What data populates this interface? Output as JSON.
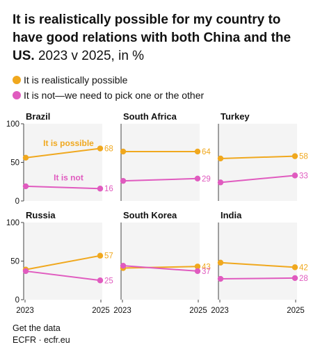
{
  "header": {
    "title_bold": "It is realistically possible for my country to have good relations with both China and the US.",
    "title_rest": " 2023 v 2025, in %"
  },
  "legend": {
    "items": [
      {
        "label": "It is realistically possible",
        "color": "#F0A81E"
      },
      {
        "label": "It is not—we need to pick one or the other",
        "color": "#E05BBF"
      }
    ]
  },
  "footer": {
    "link": "Get the data",
    "source": "ECFR · ecfr.eu"
  },
  "colors": {
    "possible": "#F0A81E",
    "not": "#E05BBF",
    "panel_bg": "#F4F4F4"
  },
  "chart_data": {
    "type": "line",
    "x": [
      "2023",
      "2025"
    ],
    "ylim": [
      0,
      100
    ],
    "yticks": [
      "0",
      "50",
      "100"
    ],
    "panels": [
      {
        "country": "Brazil",
        "series": [
          {
            "name": "It is realistically possible",
            "values": [
              56,
              68
            ],
            "label": "68",
            "inline_label": "It is possible"
          },
          {
            "name": "It is not—we need to pick one or the other",
            "values": [
              19,
              16
            ],
            "label": "16",
            "inline_label": "It is not"
          }
        ]
      },
      {
        "country": "South Africa",
        "series": [
          {
            "name": "It is realistically possible",
            "values": [
              64,
              64
            ],
            "label": "64"
          },
          {
            "name": "It is not—we need to pick one or the other",
            "values": [
              26,
              29
            ],
            "label": "29"
          }
        ]
      },
      {
        "country": "Turkey",
        "series": [
          {
            "name": "It is realistically possible",
            "values": [
              55,
              58
            ],
            "label": "58"
          },
          {
            "name": "It is not—we need to pick one or the other",
            "values": [
              24,
              33
            ],
            "label": "33"
          }
        ]
      },
      {
        "country": "Russia",
        "series": [
          {
            "name": "It is realistically possible",
            "values": [
              39,
              57
            ],
            "label": "57"
          },
          {
            "name": "It is not—we need to pick one or the other",
            "values": [
              37,
              25
            ],
            "label": "25"
          }
        ]
      },
      {
        "country": "South Korea",
        "series": [
          {
            "name": "It is realistically possible",
            "values": [
              41,
              43
            ],
            "label": "43"
          },
          {
            "name": "It is not—we need to pick one or the other",
            "values": [
              44,
              37
            ],
            "label": "37"
          }
        ]
      },
      {
        "country": "India",
        "series": [
          {
            "name": "It is realistically possible",
            "values": [
              48,
              42
            ],
            "label": "42"
          },
          {
            "name": "It is not—we need to pick one or the other",
            "values": [
              27,
              28
            ],
            "label": "28"
          }
        ]
      }
    ]
  }
}
